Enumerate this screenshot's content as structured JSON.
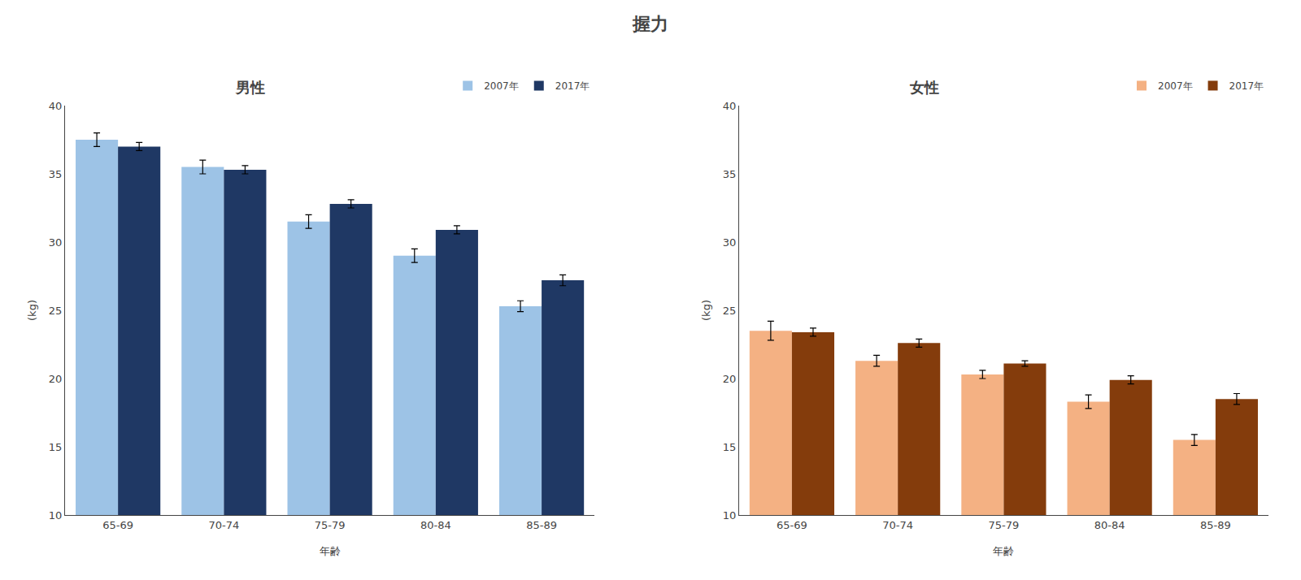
{
  "title": "握力",
  "chart_data": [
    {
      "type": "bar",
      "subtitle": "男性",
      "categories": [
        "65-69",
        "70-74",
        "75-79",
        "80-84",
        "85-89"
      ],
      "series": [
        {
          "name": "2007年",
          "color": "#9DC3E6",
          "values": [
            37.5,
            35.5,
            31.5,
            29.0,
            25.3
          ],
          "errors": [
            0.5,
            0.5,
            0.5,
            0.5,
            0.4
          ]
        },
        {
          "name": "2017年",
          "color": "#1F3864",
          "values": [
            37.0,
            35.3,
            32.8,
            30.9,
            27.2
          ],
          "errors": [
            0.3,
            0.3,
            0.3,
            0.3,
            0.4
          ]
        }
      ],
      "xlabel": "年齢",
      "ylabel": "(kg)",
      "ylim": [
        10,
        40
      ],
      "yticks": [
        10,
        15,
        20,
        25,
        30,
        35,
        40
      ],
      "grid": false,
      "legend": "upper right"
    },
    {
      "type": "bar",
      "subtitle": "女性",
      "categories": [
        "65-69",
        "70-74",
        "75-79",
        "80-84",
        "85-89"
      ],
      "series": [
        {
          "name": "2007年",
          "color": "#F4B183",
          "values": [
            23.5,
            21.3,
            20.3,
            18.3,
            15.5
          ],
          "errors": [
            0.7,
            0.4,
            0.3,
            0.5,
            0.4
          ]
        },
        {
          "name": "2017年",
          "color": "#843C0C",
          "values": [
            23.4,
            22.6,
            21.1,
            19.9,
            18.5
          ],
          "errors": [
            0.3,
            0.3,
            0.2,
            0.3,
            0.4
          ]
        }
      ],
      "xlabel": "年齢",
      "ylabel": "(kg)",
      "ylim": [
        10,
        40
      ],
      "yticks": [
        10,
        15,
        20,
        25,
        30,
        35,
        40
      ],
      "grid": false,
      "legend": "upper right"
    }
  ]
}
